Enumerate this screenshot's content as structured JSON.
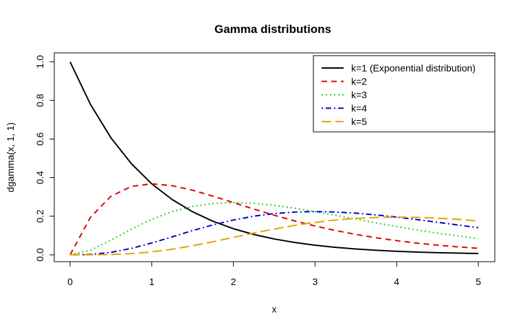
{
  "chart_data": {
    "type": "line",
    "title": "Gamma distributions",
    "xlabel": "x",
    "ylabel": "dgamma(x, 1, 1)",
    "xlim": [
      0,
      5
    ],
    "ylim": [
      0,
      1.0
    ],
    "x_ticks": [
      "0",
      "1",
      "2",
      "3",
      "4",
      "5"
    ],
    "y_ticks": [
      "0.0",
      "0.2",
      "0.4",
      "0.6",
      "0.8",
      "1.0"
    ],
    "grid": false,
    "legend_position": "top-right",
    "x": [
      0,
      0.25,
      0.5,
      0.75,
      1.0,
      1.25,
      1.5,
      1.75,
      2.0,
      2.25,
      2.5,
      2.75,
      3.0,
      3.25,
      3.5,
      3.75,
      4.0,
      4.25,
      4.5,
      4.75,
      5.0
    ],
    "series": [
      {
        "name": "k=1 (Exponential distribution)",
        "color": "#000000",
        "dash": "solid",
        "values": [
          1.0,
          0.7788,
          0.6065,
          0.4724,
          0.3679,
          0.2865,
          0.2231,
          0.1738,
          0.1353,
          0.1054,
          0.0821,
          0.0639,
          0.0498,
          0.0388,
          0.0302,
          0.0235,
          0.0183,
          0.0143,
          0.0111,
          0.0087,
          0.0067
        ]
      },
      {
        "name": "k=2",
        "color": "#df0000",
        "dash": "dashed",
        "values": [
          0.0,
          0.1947,
          0.3033,
          0.3543,
          0.3679,
          0.3581,
          0.3347,
          0.3041,
          0.2707,
          0.2371,
          0.2052,
          0.1758,
          0.1494,
          0.1261,
          0.1057,
          0.0882,
          0.0733,
          0.0606,
          0.05,
          0.0411,
          0.0337
        ]
      },
      {
        "name": "k=3",
        "color": "#22cc22",
        "dash": "dotted",
        "values": [
          0.0,
          0.0243,
          0.0758,
          0.1329,
          0.1839,
          0.2238,
          0.251,
          0.2661,
          0.2707,
          0.2668,
          0.2565,
          0.2417,
          0.224,
          0.2049,
          0.185,
          0.1653,
          0.1465,
          0.1288,
          0.1125,
          0.0977,
          0.0842
        ]
      },
      {
        "name": "k=4",
        "color": "#0000cc",
        "dash": "dotdash",
        "values": [
          0.0,
          0.002,
          0.0126,
          0.0332,
          0.0613,
          0.0932,
          0.1255,
          0.1552,
          0.1804,
          0.2001,
          0.2138,
          0.2216,
          0.224,
          0.222,
          0.2158,
          0.2066,
          0.1954,
          0.1825,
          0.1687,
          0.1546,
          0.1404
        ]
      },
      {
        "name": "k=5",
        "color": "#e8a000",
        "dash": "longdash",
        "values": [
          0.0,
          0.0001,
          0.0016,
          0.0062,
          0.0153,
          0.0291,
          0.0471,
          0.0679,
          0.0902,
          0.1126,
          0.1336,
          0.1523,
          0.168,
          0.1804,
          0.1888,
          0.1937,
          0.1954,
          0.1939,
          0.1898,
          0.1836,
          0.1755
        ]
      }
    ]
  }
}
